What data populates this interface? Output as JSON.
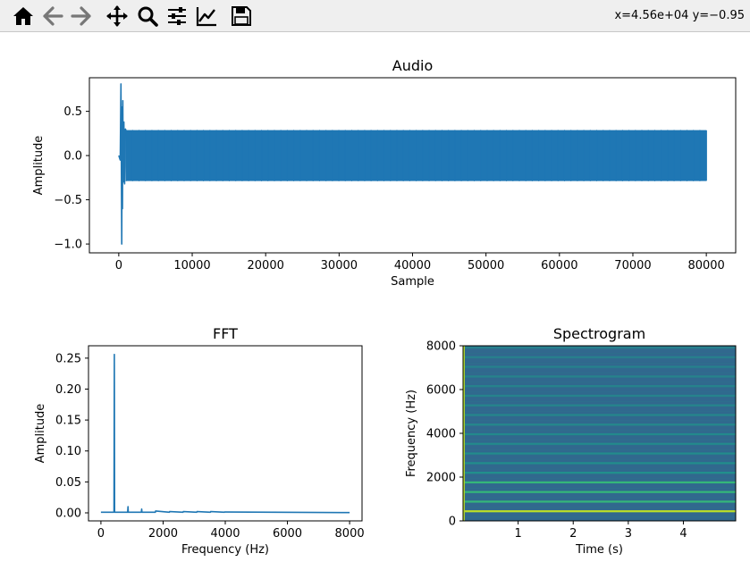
{
  "toolbar": {
    "buttons": [
      {
        "name": "home-icon",
        "tooltip": "Home"
      },
      {
        "name": "back-icon",
        "tooltip": "Back"
      },
      {
        "name": "forward-icon",
        "tooltip": "Forward"
      },
      {
        "name": "pan-icon",
        "tooltip": "Pan"
      },
      {
        "name": "zoom-icon",
        "tooltip": "Zoom"
      },
      {
        "name": "configure-subplots-icon",
        "tooltip": "Subplots"
      },
      {
        "name": "edit-axis-icon",
        "tooltip": "Customize"
      },
      {
        "name": "save-icon",
        "tooltip": "Save"
      }
    ],
    "coords": "x=4.56e+04 y=−0.95"
  },
  "colors": {
    "line": "#1f77b4",
    "spec_bg": "#31688e",
    "spec_band_strong": "#bddf26",
    "spec_band_mid": "#35b779",
    "spec_band_weak": "#21918c"
  },
  "chart_data": [
    {
      "type": "line",
      "title": "Audio",
      "xlabel": "Sample",
      "ylabel": "Amplitude",
      "xlim": [
        -4000,
        84000
      ],
      "ylim": [
        -1.1,
        0.88
      ],
      "xticks": [
        0,
        10000,
        20000,
        30000,
        40000,
        50000,
        60000,
        70000,
        80000
      ],
      "xtick_labels": [
        "0",
        "10000",
        "20000",
        "30000",
        "40000",
        "50000",
        "60000",
        "70000",
        "80000"
      ],
      "yticks": [
        0.5,
        0.0,
        -0.5,
        -1.0
      ],
      "ytick_labels": [
        "0.5",
        "0.0",
        "−0.5",
        "−1.0"
      ],
      "series": [
        {
          "x": [
            0,
            200,
            300,
            400,
            450,
            500,
            550,
            600,
            700,
            800,
            900,
            1000,
            80000,
            80000,
            1000
          ],
          "y": [
            0.0,
            -0.05,
            0.81,
            -1.0,
            0.55,
            -0.6,
            0.62,
            -0.3,
            0.38,
            -0.32,
            0.3,
            0.28,
            0.28,
            -0.28,
            -0.28
          ]
        }
      ],
      "envelope": {
        "start": 1000,
        "end": 80000,
        "upper": 0.28,
        "lower": -0.28
      }
    },
    {
      "type": "line",
      "title": "FFT",
      "xlabel": "Frequency (Hz)",
      "ylabel": "Amplitude",
      "xlim": [
        -400,
        8400
      ],
      "ylim": [
        -0.013,
        0.27
      ],
      "xticks": [
        0,
        2000,
        4000,
        6000,
        8000
      ],
      "xtick_labels": [
        "0",
        "2000",
        "4000",
        "6000",
        "8000"
      ],
      "yticks": [
        0.0,
        0.05,
        0.1,
        0.15,
        0.2,
        0.25
      ],
      "ytick_labels": [
        "0.00",
        "0.05",
        "0.10",
        "0.15",
        "0.20",
        "0.25"
      ],
      "series": [
        {
          "x": [
            0,
            420,
            430,
            440,
            450,
            860,
            870,
            880,
            1300,
            1310,
            1320,
            1750,
            1760,
            2200,
            2210,
            2640,
            2650,
            3080,
            3090,
            3520,
            3530,
            3970,
            3980,
            8000
          ],
          "y": [
            0.001,
            0.001,
            0.256,
            0.001,
            0.001,
            0.001,
            0.01,
            0.001,
            0.001,
            0.006,
            0.001,
            0.001,
            0.003,
            0.001,
            0.002,
            0.001,
            0.002,
            0.001,
            0.002,
            0.001,
            0.002,
            0.001,
            0.0015,
            0.0005
          ]
        }
      ]
    },
    {
      "type": "heatmap",
      "title": "Spectrogram",
      "xlabel": "Time (s)",
      "ylabel": "Frequency (Hz)",
      "xlim": [
        0.0,
        4.95
      ],
      "ylim": [
        0,
        8000
      ],
      "xticks": [
        1,
        2,
        3,
        4
      ],
      "xtick_labels": [
        "1",
        "2",
        "3",
        "4"
      ],
      "yticks": [
        0,
        2000,
        4000,
        6000,
        8000
      ],
      "ytick_labels": [
        "0",
        "2000",
        "4000",
        "6000",
        "8000"
      ],
      "onset_time": 0.03,
      "bands_hz": [
        440,
        880,
        1320,
        1760,
        2200,
        2640,
        3080,
        3520,
        3960,
        4400,
        4840,
        5280,
        5720,
        6160,
        6600,
        7040,
        7480,
        7920
      ],
      "band_strength": [
        1.0,
        0.72,
        0.62,
        0.55,
        0.5,
        0.45,
        0.42,
        0.38,
        0.35,
        0.3,
        0.27,
        0.25,
        0.22,
        0.2,
        0.18,
        0.17,
        0.15,
        0.14
      ]
    }
  ]
}
